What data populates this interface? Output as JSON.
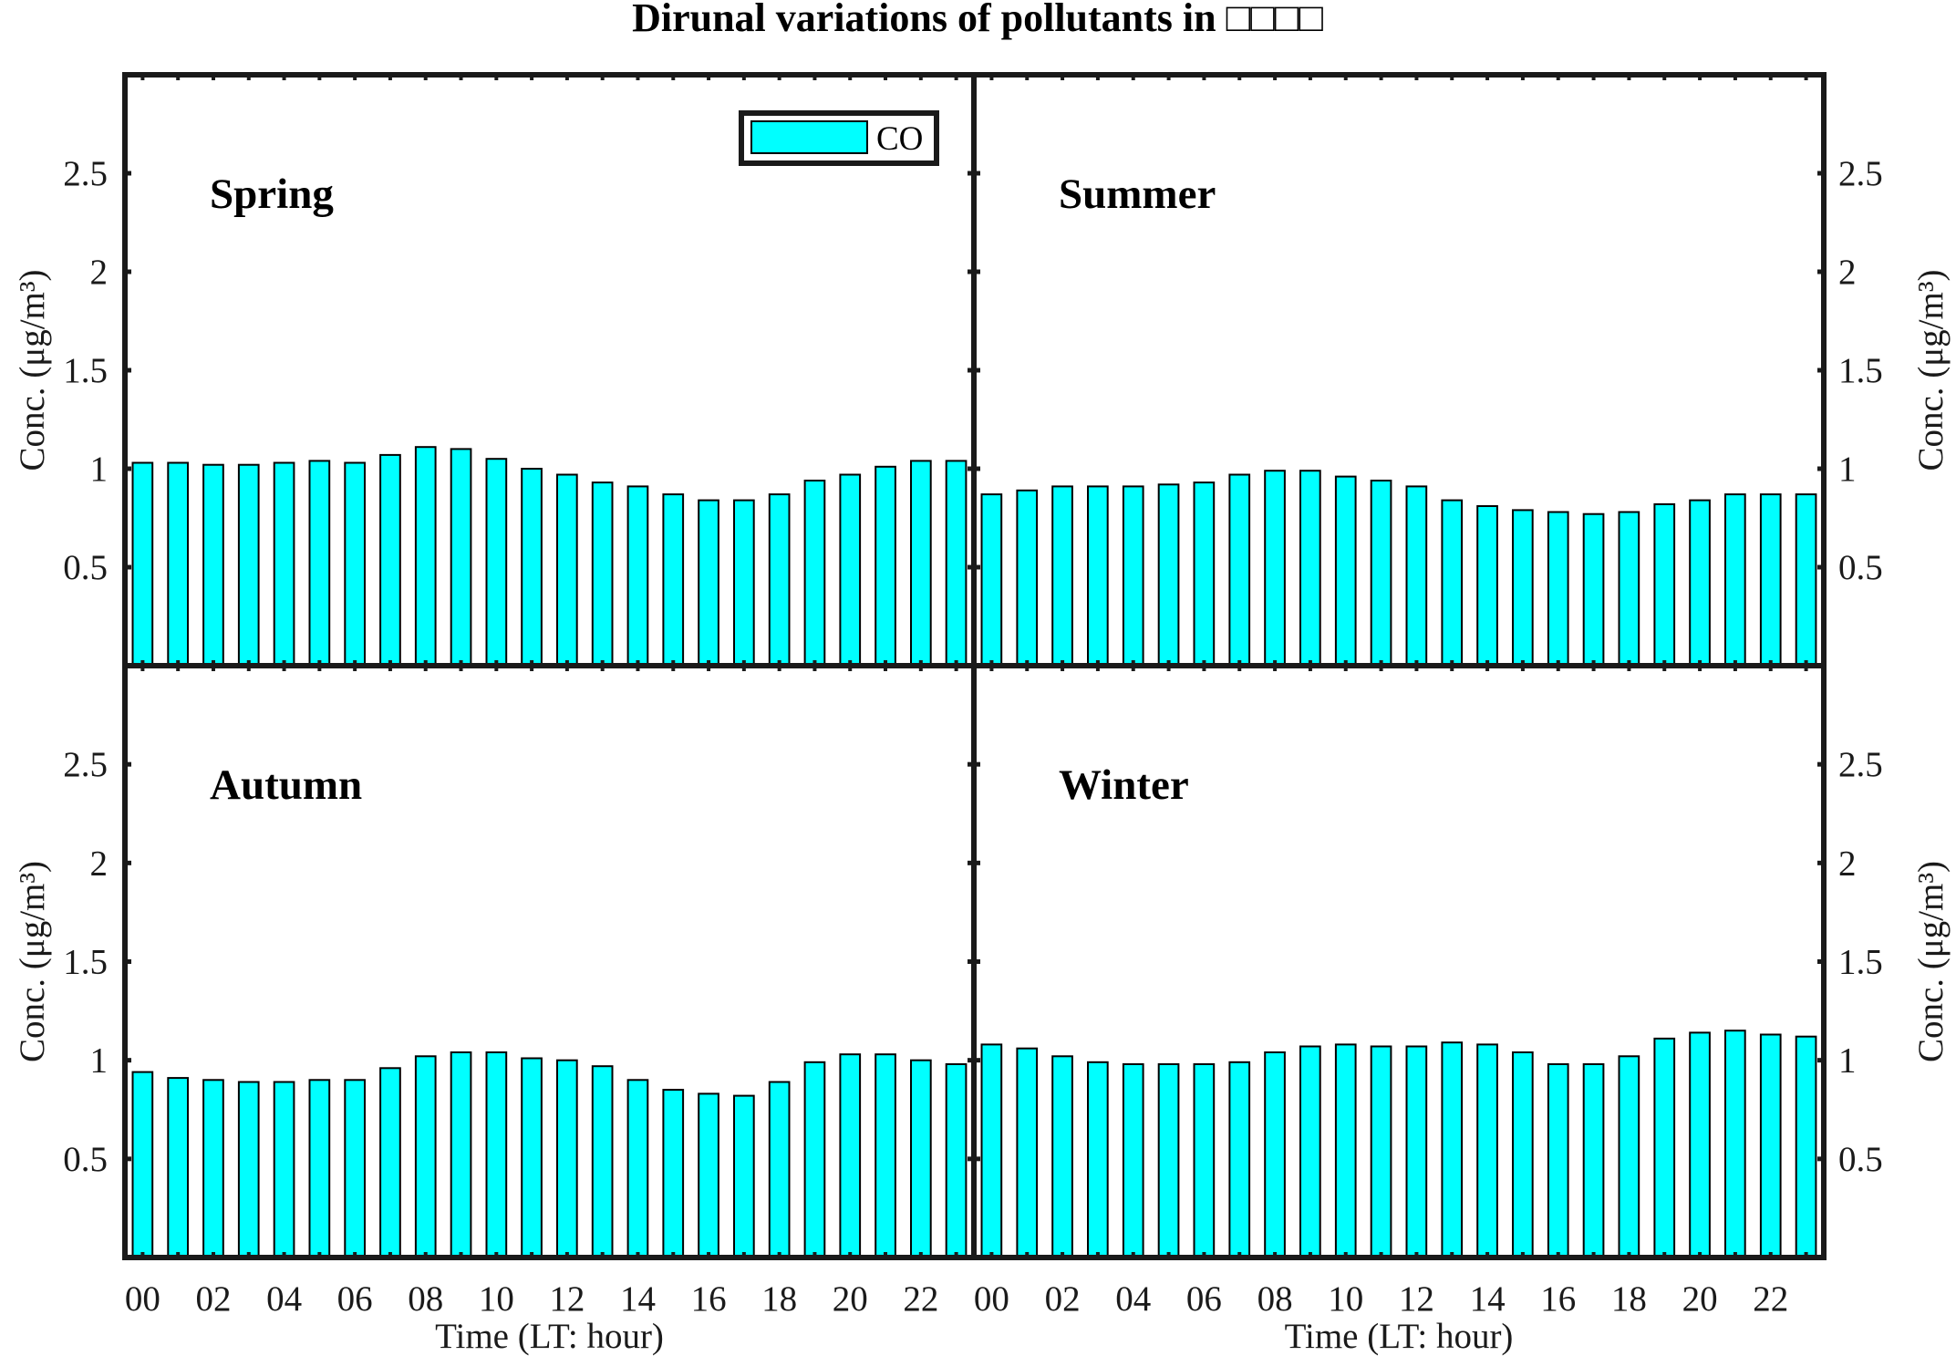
{
  "title": "Dirunal variations of pollutants in □□□□",
  "colors": {
    "bar_fill": "#00FFFF",
    "bar_stroke": "#000000",
    "frame": "#1a1a1a"
  },
  "chart_data": {
    "type": "bar",
    "title": "Dirunal variations of pollutants in □□□□",
    "categories": [
      "00",
      "01",
      "02",
      "03",
      "04",
      "05",
      "06",
      "07",
      "08",
      "09",
      "10",
      "11",
      "12",
      "13",
      "14",
      "15",
      "16",
      "17",
      "18",
      "19",
      "20",
      "21",
      "22",
      "23"
    ],
    "xtick_labels": [
      "00",
      "02",
      "04",
      "06",
      "08",
      "10",
      "12",
      "14",
      "16",
      "18",
      "20",
      "22"
    ],
    "xlabel": "Time (LT: hour)",
    "ylabel": "Conc. (μg/m³)",
    "ylim": [
      0,
      3
    ],
    "yticks": [
      0.5,
      1,
      1.5,
      2,
      2.5
    ],
    "ytick_labels": [
      "0.5",
      "1",
      "1.5",
      "2",
      "2.5"
    ],
    "legend": {
      "entries": [
        "CO"
      ],
      "placement": "top-right of Spring panel"
    },
    "panels": [
      {
        "label": "Spring",
        "series": [
          {
            "name": "CO",
            "values": [
              1.03,
              1.03,
              1.02,
              1.02,
              1.03,
              1.04,
              1.03,
              1.07,
              1.11,
              1.1,
              1.05,
              1.0,
              0.97,
              0.93,
              0.91,
              0.87,
              0.84,
              0.84,
              0.87,
              0.94,
              0.97,
              1.01,
              1.04,
              1.04
            ]
          }
        ]
      },
      {
        "label": "Summer",
        "series": [
          {
            "name": "CO",
            "values": [
              0.87,
              0.89,
              0.91,
              0.91,
              0.91,
              0.92,
              0.93,
              0.97,
              0.99,
              0.99,
              0.96,
              0.94,
              0.91,
              0.84,
              0.81,
              0.79,
              0.78,
              0.77,
              0.78,
              0.82,
              0.84,
              0.87,
              0.87,
              0.87
            ]
          }
        ]
      },
      {
        "label": "Autumn",
        "series": [
          {
            "name": "CO",
            "values": [
              0.94,
              0.91,
              0.9,
              0.89,
              0.89,
              0.9,
              0.9,
              0.96,
              1.02,
              1.04,
              1.04,
              1.01,
              1.0,
              0.97,
              0.9,
              0.85,
              0.83,
              0.82,
              0.89,
              0.99,
              1.03,
              1.03,
              1.0,
              0.98
            ]
          }
        ]
      },
      {
        "label": "Winter",
        "series": [
          {
            "name": "CO",
            "values": [
              1.08,
              1.06,
              1.02,
              0.99,
              0.98,
              0.98,
              0.98,
              0.99,
              1.04,
              1.07,
              1.08,
              1.07,
              1.07,
              1.09,
              1.08,
              1.04,
              0.98,
              0.98,
              1.02,
              1.11,
              1.14,
              1.15,
              1.13,
              1.12
            ]
          }
        ]
      }
    ]
  }
}
